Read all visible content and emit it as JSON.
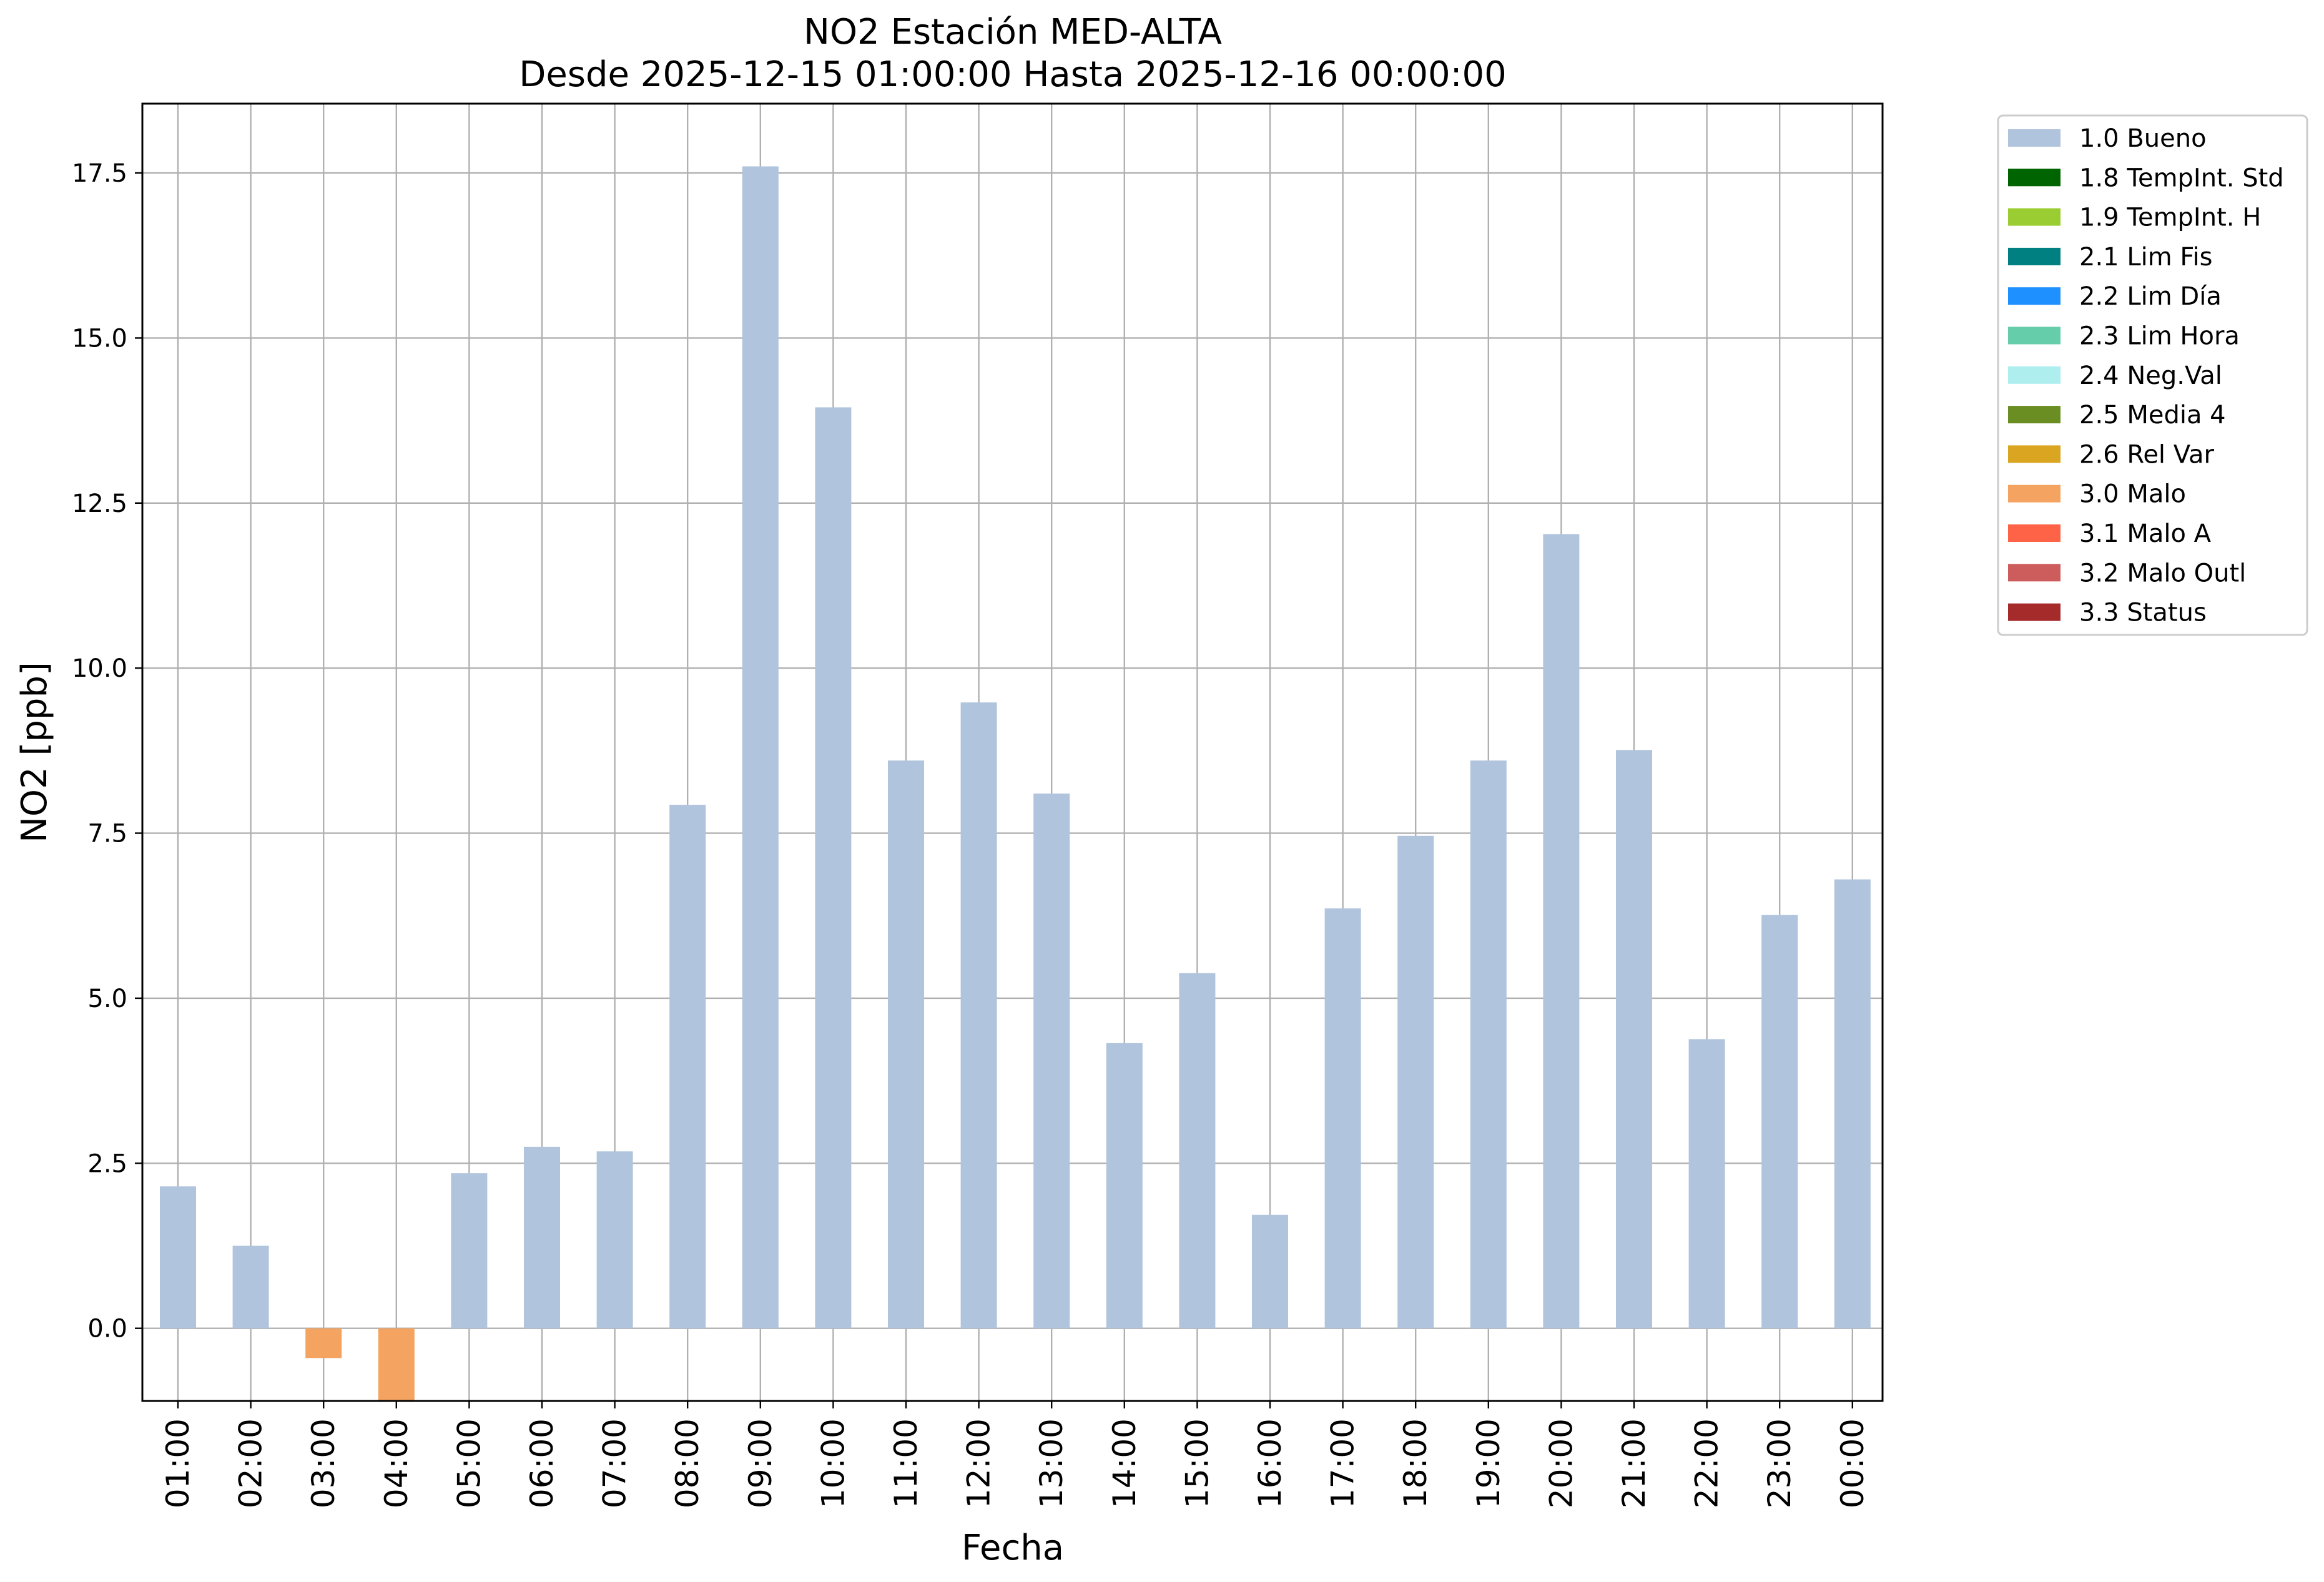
{
  "chart_data": {
    "type": "bar",
    "title": "NO2 Estación MED-ALTA",
    "subtitle": "Desde 2025-12-15 01:00:00 Hasta 2025-12-16 00:00:00",
    "xlabel": "Fecha",
    "ylabel": "NO2 [ppb]",
    "ylim": [
      -1.1,
      18.55
    ],
    "yticks": [
      "0.0",
      "2.5",
      "5.0",
      "7.5",
      "10.0",
      "12.5",
      "15.0",
      "17.5"
    ],
    "grid": true,
    "legend_position": "outside-top-right",
    "categories": [
      "01:00",
      "02:00",
      "03:00",
      "04:00",
      "05:00",
      "06:00",
      "07:00",
      "08:00",
      "09:00",
      "10:00",
      "11:00",
      "12:00",
      "13:00",
      "14:00",
      "15:00",
      "16:00",
      "17:00",
      "18:00",
      "19:00",
      "20:00",
      "21:00",
      "22:00",
      "23:00",
      "00:00"
    ],
    "values": [
      2.15,
      1.25,
      -0.45,
      -1.15,
      2.35,
      2.75,
      2.68,
      7.93,
      17.6,
      13.95,
      8.6,
      9.48,
      8.1,
      4.32,
      5.38,
      1.72,
      6.36,
      7.46,
      8.6,
      12.03,
      8.76,
      4.38,
      6.26,
      6.8
    ],
    "flags": [
      "1.0 Bueno",
      "1.0 Bueno",
      "3.0 Malo",
      "3.0 Malo",
      "1.0 Bueno",
      "1.0 Bueno",
      "1.0 Bueno",
      "1.0 Bueno",
      "1.0 Bueno",
      "1.0 Bueno",
      "1.0 Bueno",
      "1.0 Bueno",
      "1.0 Bueno",
      "1.0 Bueno",
      "1.0 Bueno",
      "1.0 Bueno",
      "1.0 Bueno",
      "1.0 Bueno",
      "1.0 Bueno",
      "1.0 Bueno",
      "1.0 Bueno",
      "1.0 Bueno",
      "1.0 Bueno",
      "1.0 Bueno"
    ],
    "legend": [
      {
        "label": "1.0 Bueno",
        "color": "#b0c4de"
      },
      {
        "label": "1.8 TempInt. Std",
        "color": "#006400"
      },
      {
        "label": "1.9 TempInt. H",
        "color": "#9acd32"
      },
      {
        "label": "2.1 Lim Fis",
        "color": "#008080"
      },
      {
        "label": "2.2 Lim Día",
        "color": "#1e90ff"
      },
      {
        "label": "2.3 Lim Hora",
        "color": "#66cdaa"
      },
      {
        "label": "2.4 Neg.Val",
        "color": "#afeeee"
      },
      {
        "label": "2.5 Media 4",
        "color": "#6b8e23"
      },
      {
        "label": "2.6 Rel Var",
        "color": "#daa520"
      },
      {
        "label": "3.0 Malo",
        "color": "#f4a460"
      },
      {
        "label": "3.1 Malo A",
        "color": "#ff6347"
      },
      {
        "label": "3.2 Malo Outl",
        "color": "#cd5c5c"
      },
      {
        "label": "3.3 Status",
        "color": "#a52a2a"
      }
    ]
  }
}
